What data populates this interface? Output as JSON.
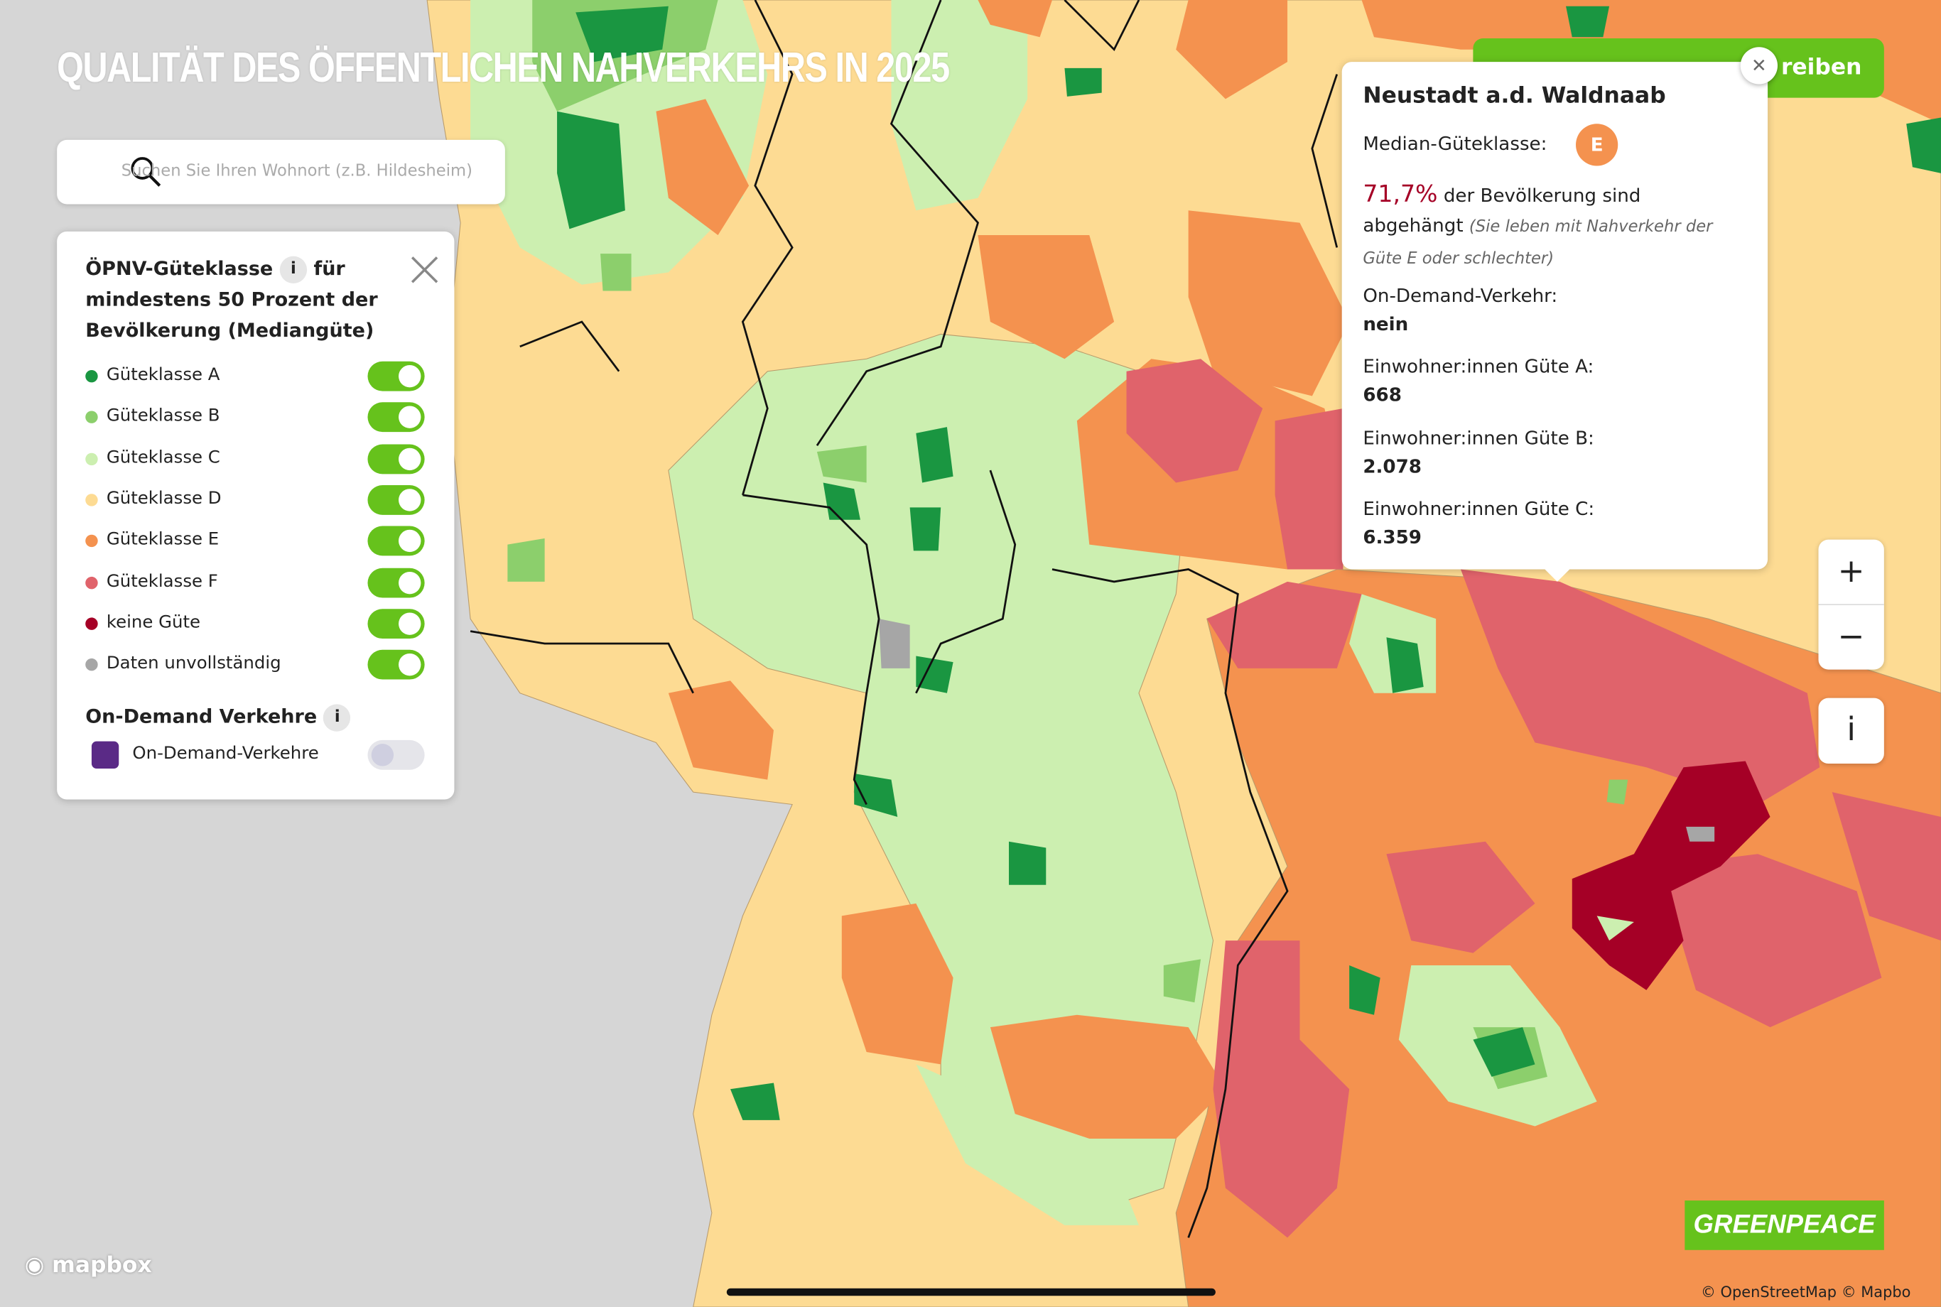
{
  "header": {
    "title": "QUALITÄT DES ÖFFENTLICHEN NAHVERKEHRS IN 2025"
  },
  "search": {
    "placeholder": "Suchen Sie Ihren Wohnort (z.B. Hildesheim)"
  },
  "legend": {
    "title_start": "ÖPNV-Güteklasse",
    "info": "i",
    "title_end": "für mindestens 50 Prozent der Bevölkerung (Mediangüte)",
    "items": [
      {
        "label": "Güteklasse A",
        "color": "#1a9641"
      },
      {
        "label": "Güteklasse B",
        "color": "#8ccf6c"
      },
      {
        "label": "Güteklasse C",
        "color": "#ccefb0"
      },
      {
        "label": "Güteklasse D",
        "color": "#fddb93"
      },
      {
        "label": "Güteklasse E",
        "color": "#f4924f"
      },
      {
        "label": "Güteklasse F",
        "color": "#e0636b"
      },
      {
        "label": "keine Güte",
        "color": "#a50026"
      },
      {
        "label": "Daten unvollständig",
        "color": "#a6a6a6"
      }
    ]
  },
  "on_demand": {
    "title": "On-Demand Verkehre",
    "info": "i",
    "item": "On-Demand-Verkehre"
  },
  "popup": {
    "title": "Neustadt a.d. Waldnaab",
    "median_label": "Median-Güteklasse:",
    "median_badge": "E",
    "share": "71,7%",
    "share_text": "der Bevölkerung sind abgehängt",
    "note": "(Sie leben mit Nahverkehr der Güte E oder schlechter)",
    "rows": [
      {
        "label": "On-Demand-Verkehr:",
        "value": "nein"
      },
      {
        "label": "Einwohner:innen Güte A:",
        "value": "668"
      },
      {
        "label": "Einwohner:innen Güte B:",
        "value": "2.078"
      },
      {
        "label": "Einwohner:innen Güte C:",
        "value": "6.359"
      }
    ]
  },
  "button": {
    "label": "reiben"
  },
  "zoom": {
    "in": "+",
    "out": "−",
    "info": "i"
  },
  "footer": {
    "mapbox": "mapbox",
    "osm": "© OpenStreetMap",
    "mapbox_copy": "© Mapbo",
    "logo": "GREENPEACE"
  }
}
